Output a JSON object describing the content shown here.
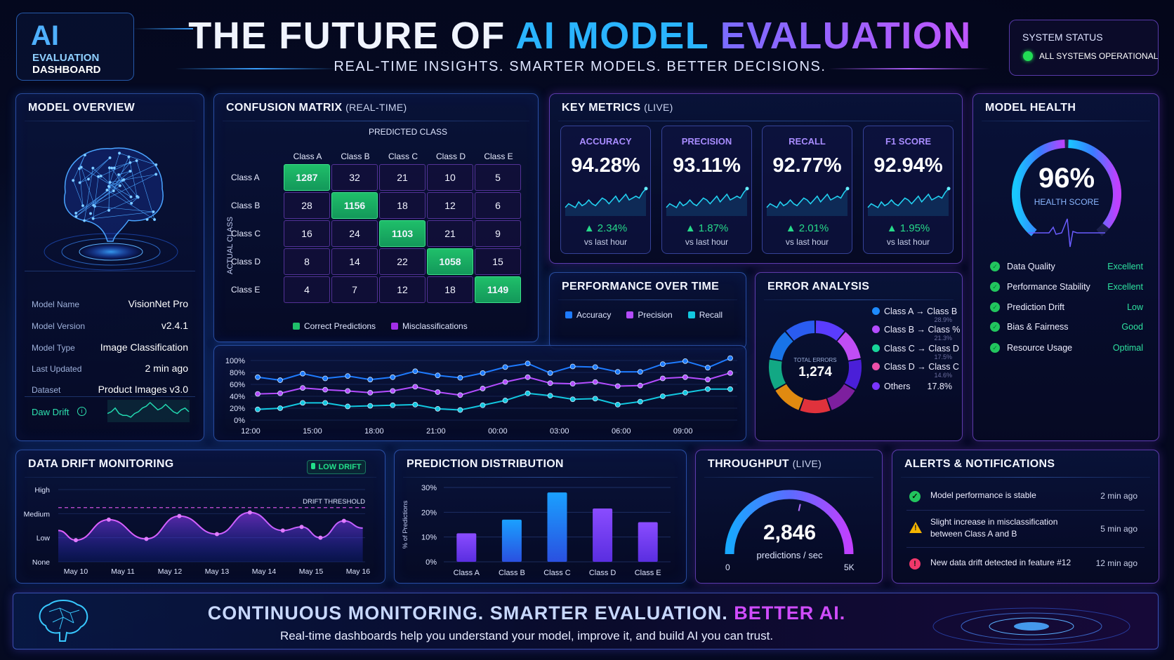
{
  "header": {
    "logo_ai": "AI",
    "logo_line1": "EVALUATION",
    "logo_line2": "DASHBOARD",
    "title_part1": "THE FUTURE OF ",
    "title_part2": "AI MODEL ",
    "title_part3": "EVALUATION",
    "subtitle": "REAL-TIME INSIGHTS. SMARTER MODELS. BETTER DECISIONS."
  },
  "system_status": {
    "title": "SYSTEM STATUS",
    "status": "ALL SYSTEMS OPERATIONAL",
    "color": "#22dd55"
  },
  "model_overview": {
    "title": "MODEL OVERVIEW",
    "rows": [
      {
        "k": "Model Name",
        "v": "VisionNet Pro"
      },
      {
        "k": "Model Version",
        "v": "v2.4.1"
      },
      {
        "k": "Model Type",
        "v": "Image Classification"
      },
      {
        "k": "Last Updated",
        "v": "2 min ago"
      },
      {
        "k": "Dataset",
        "v": "Product Images v3.0"
      }
    ],
    "drift_label": "Daw Drift",
    "drift_icon": "info-icon",
    "drift_sparkline": [
      4,
      5,
      7,
      4,
      3,
      3,
      2,
      4,
      5,
      7,
      8,
      10,
      8,
      6,
      7,
      9,
      7,
      5,
      4,
      6,
      7,
      5
    ]
  },
  "confusion_matrix": {
    "title": "CONFUSION MATRIX",
    "subtitle": "(REAL-TIME)",
    "x_axis": "PREDICTED CLASS",
    "y_axis": "ACTUAL CLASS",
    "classes": [
      "Class A",
      "Class B",
      "Class C",
      "Class D",
      "Class E"
    ],
    "values": [
      [
        1287,
        32,
        21,
        10,
        5
      ],
      [
        28,
        1156,
        18,
        12,
        6
      ],
      [
        16,
        24,
        1103,
        21,
        9
      ],
      [
        8,
        14,
        22,
        1058,
        15
      ],
      [
        4,
        7,
        12,
        18,
        1149
      ]
    ],
    "legend_correct": "Correct Predictions",
    "legend_mis": "Misclassifications",
    "correct_color": "#1fbf6a",
    "mis_color": "#a12ee8"
  },
  "key_metrics": {
    "title": "KEY METRICS",
    "subtitle": "(LIVE)",
    "cards": [
      {
        "label": "ACCURACY",
        "value": "94.28%",
        "delta": "▲ 2.34%",
        "vs": "vs last hour"
      },
      {
        "label": "PRECISION",
        "value": "93.11%",
        "delta": "▲ 1.87%",
        "vs": "vs last hour"
      },
      {
        "label": "RECALL",
        "value": "92.77%",
        "delta": "▲ 2.01%",
        "vs": "vs last hour"
      },
      {
        "label": "F1 SCORE",
        "value": "92.94%",
        "delta": "▲ 1.95%",
        "vs": "vs last hour"
      }
    ],
    "sparkline": [
      3,
      5,
      4,
      3,
      6,
      4,
      5,
      7,
      5,
      4,
      6,
      8,
      7,
      5,
      7,
      9,
      6,
      8,
      10,
      7,
      8,
      9,
      8,
      11,
      13
    ]
  },
  "model_health": {
    "title": "MODEL HEALTH",
    "score": "96%",
    "score_value": 96,
    "score_label": "HEALTH SCORE",
    "items": [
      {
        "k": "Data Quality",
        "v": "Excellent"
      },
      {
        "k": "Performance Stability",
        "v": "Excellent"
      },
      {
        "k": "Prediction Drift",
        "v": "Low"
      },
      {
        "k": "Bias & Fairness",
        "v": "Good"
      },
      {
        "k": "Resource Usage",
        "v": "Optimal"
      }
    ]
  },
  "performance": {
    "title": "PERFORMANCE OVER TIME"
  },
  "error_analysis": {
    "title": "ERROR ANALYSIS",
    "total_label": "TOTAL ERRORS",
    "total": "1,274",
    "legend": [
      {
        "label": "Class A → Class B",
        "pct": "28.9%",
        "color": "#1e8bff"
      },
      {
        "label": "Class B → Class %",
        "pct": "21.3%",
        "color": "#b44cff"
      },
      {
        "label": "Class C → Class D",
        "pct": "17.5%",
        "color": "#18d49a"
      },
      {
        "label": "Class D → Class C",
        "pct": "14.6%",
        "color": "#ee4fa8"
      },
      {
        "label": "Others",
        "pct": "17.8%",
        "color": "#7a35ff"
      }
    ],
    "segment_colors": [
      "#5a3cff",
      "#c04df5",
      "#4a1fd8",
      "#7d1f9e",
      "#e0323c",
      "#e08a10",
      "#12a884",
      "#1874e8",
      "#2a5cf0"
    ]
  },
  "chart_data": [
    {
      "type": "line",
      "x_ticks": [
        "12:00",
        "15:00",
        "18:00",
        "21:00",
        "00:00",
        "03:00",
        "06:00",
        "09:00"
      ],
      "y_ticks": [
        "0%",
        "20%",
        "40%",
        "60%",
        "80%",
        "100%"
      ],
      "ylim": [
        0,
        100
      ],
      "legend_placement": "top-left",
      "series": [
        {
          "name": "Accuracy",
          "color": "#1e7bff",
          "values": [
            72,
            67,
            78,
            70,
            74,
            68,
            72,
            82,
            75,
            71,
            79,
            89,
            95,
            79,
            90,
            89,
            81,
            81,
            94,
            99,
            88,
            104
          ]
        },
        {
          "name": "Precision",
          "color": "#b44cff",
          "values": [
            44,
            45,
            54,
            51,
            49,
            46,
            49,
            56,
            47,
            42,
            53,
            64,
            72,
            62,
            61,
            64,
            57,
            58,
            70,
            72,
            68,
            79
          ]
        },
        {
          "name": "Recall",
          "color": "#12c8e0",
          "values": [
            18,
            20,
            29,
            29,
            23,
            24,
            25,
            26,
            19,
            17,
            25,
            33,
            45,
            41,
            35,
            36,
            26,
            31,
            40,
            46,
            52,
            52
          ]
        }
      ]
    },
    {
      "type": "area",
      "title": "DATA DRIFT MONITORING",
      "badge": "LOW DRIFT",
      "threshold_label": "DRIFT THRESHOLD",
      "y_ticks": [
        "None",
        "Low",
        "Medium",
        "High"
      ],
      "threshold": 2.25,
      "x_ticks": [
        "May 10",
        "May 11",
        "May 12",
        "May 13",
        "May 14",
        "May 15",
        "May 16"
      ],
      "x": [
        -0.4,
        0,
        0.7,
        1.5,
        2.2,
        3.0,
        3.7,
        4.4,
        4.8,
        5.2,
        5.7,
        6.1
      ],
      "values": [
        1.3,
        0.9,
        1.75,
        0.95,
        1.9,
        1.15,
        2.05,
        1.3,
        1.45,
        1.0,
        1.7,
        1.4
      ]
    },
    {
      "type": "bar",
      "title": "PREDICTION DISTRIBUTION",
      "ylabel": "% of Predictions",
      "categories": [
        "Class A",
        "Class B",
        "Class C",
        "Class D",
        "Class E"
      ],
      "values": [
        11.5,
        17,
        28,
        21.5,
        16
      ],
      "y_ticks": [
        "0%",
        "10%",
        "20%",
        "30%"
      ],
      "ylim": [
        0,
        30
      ]
    },
    {
      "type": "gauge",
      "title": "THROUGHPUT",
      "subtitle": "(LIVE)",
      "value": 2846,
      "value_label": "2,846",
      "unit": "predictions / sec",
      "min_label": "0",
      "max_label": "5K",
      "max": 5000
    }
  ],
  "alerts": {
    "title": "ALERTS & NOTIFICATIONS",
    "items": [
      {
        "icon": "check-circle-icon",
        "text": "Model performance is stable",
        "text2": "",
        "time": "2 min ago",
        "color": "#22c55e"
      },
      {
        "icon": "warning-icon",
        "text": "Slight increase in misclassification",
        "text2": "between Class A and B",
        "time": "5 min ago",
        "color": "#f5b400"
      },
      {
        "icon": "alert-circle-icon",
        "text": "New data drift detected in feature #12",
        "text2": "",
        "time": "12 min ago",
        "color": "#f0386b"
      }
    ]
  },
  "banner": {
    "headline1": "CONTINUOUS MONITORING. SMARTER EVALUATION. ",
    "headline2": "BETTER AI.",
    "text": "Real-time dashboards help you understand your model, improve it, and build AI you can trust."
  }
}
